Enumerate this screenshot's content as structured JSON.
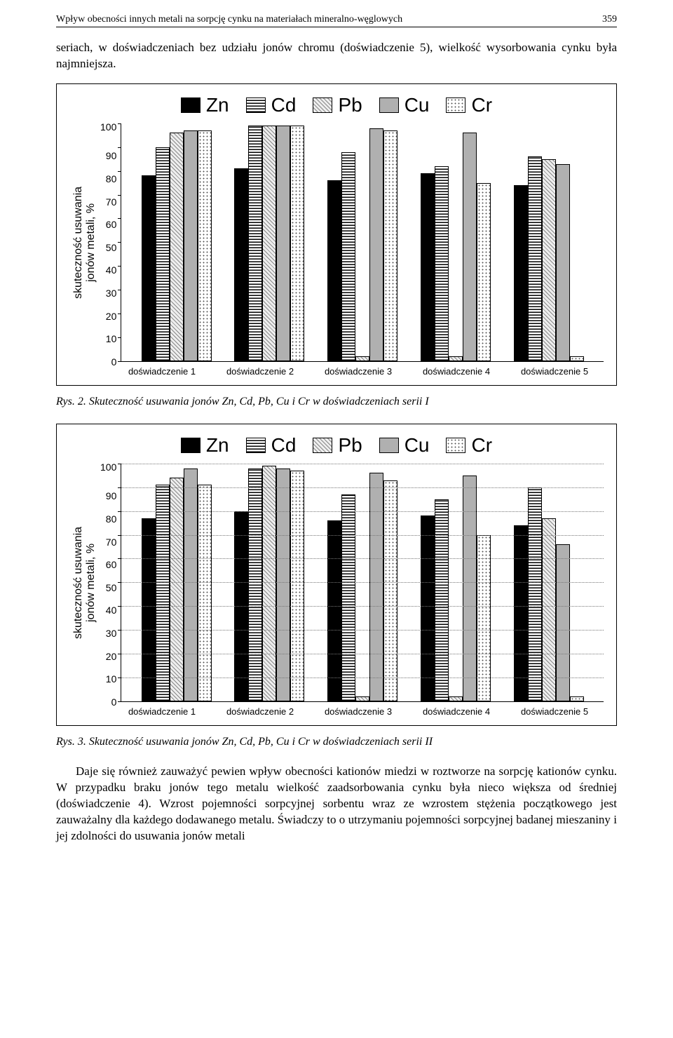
{
  "header": {
    "title": "Wpływ obecności innych metali na sorpcję cynku na materiałach mineralno-węglowych",
    "page_number": "359"
  },
  "para1": "seriach, w doświadczeniach bez udziału jonów chromu (doświadczenie 5), wielkość wysorbowania cynku była najmniejsza.",
  "legend": [
    "Zn",
    "Cd",
    "Pb",
    "Cu",
    "Cr"
  ],
  "legend_patterns": [
    "pat-solid",
    "pat-hstripe",
    "pat-diag",
    "pat-gray",
    "pat-dots"
  ],
  "chart1": {
    "type": "bar",
    "ylabel": "skuteczność usuwania\njonów metali, %",
    "ylim": [
      0,
      100
    ],
    "ytick_step": 10,
    "show_grid": false,
    "categories": [
      "doświadczenie 1",
      "doświadczenie 2",
      "doświadczenie 3",
      "doświadczenie 4",
      "doświadczenie 5"
    ],
    "series": {
      "Zn": [
        78,
        81,
        76,
        79,
        74
      ],
      "Cd": [
        90,
        99,
        88,
        82,
        86
      ],
      "Pb": [
        96,
        99,
        2,
        2,
        85
      ],
      "Cu": [
        97,
        99,
        98,
        96,
        83
      ],
      "Cr": [
        97,
        99,
        97,
        75,
        2
      ]
    }
  },
  "caption1": "Rys. 2. Skuteczność usuwania  jonów Zn, Cd, Pb, Cu i Cr w doświadczeniach serii I",
  "chart2": {
    "type": "bar",
    "ylabel": "skuteczność usuwania\njonów  metali, %",
    "ylim": [
      0,
      100
    ],
    "ytick_step": 10,
    "show_grid": true,
    "grid_color": "#777777",
    "categories": [
      "doświadczenie 1",
      "doświadczenie 2",
      "doświadczenie 3",
      "doświadczenie 4",
      "doświadczenie 5"
    ],
    "series": {
      "Zn": [
        77,
        80,
        76,
        78,
        74
      ],
      "Cd": [
        91,
        98,
        87,
        85,
        90
      ],
      "Pb": [
        94,
        99,
        2,
        2,
        77
      ],
      "Cu": [
        98,
        98,
        96,
        95,
        66
      ],
      "Cr": [
        91,
        97,
        93,
        70,
        2
      ]
    }
  },
  "caption2": "Rys. 3. Skuteczność usuwania jonów Zn, Cd, Pb, Cu i Cr w doświadczeniach serii II",
  "para2": "Daje się również zauważyć pewien wpływ obecności kationów miedzi w roztworze na sorpcję kationów cynku. W przypadku braku jonów tego metalu wielkość zaadsorbowania cynku była nieco większa od średniej (doświadczenie 4). Wzrost pojemności sorpcyjnej sorbentu wraz ze wzrostem stężenia początkowego jest zauważalny dla każdego dodawanego metalu. Świadczy to o utrzymaniu pojemności sorpcyjnej badanej mieszaniny i jej zdolności do usuwania jonów metali"
}
